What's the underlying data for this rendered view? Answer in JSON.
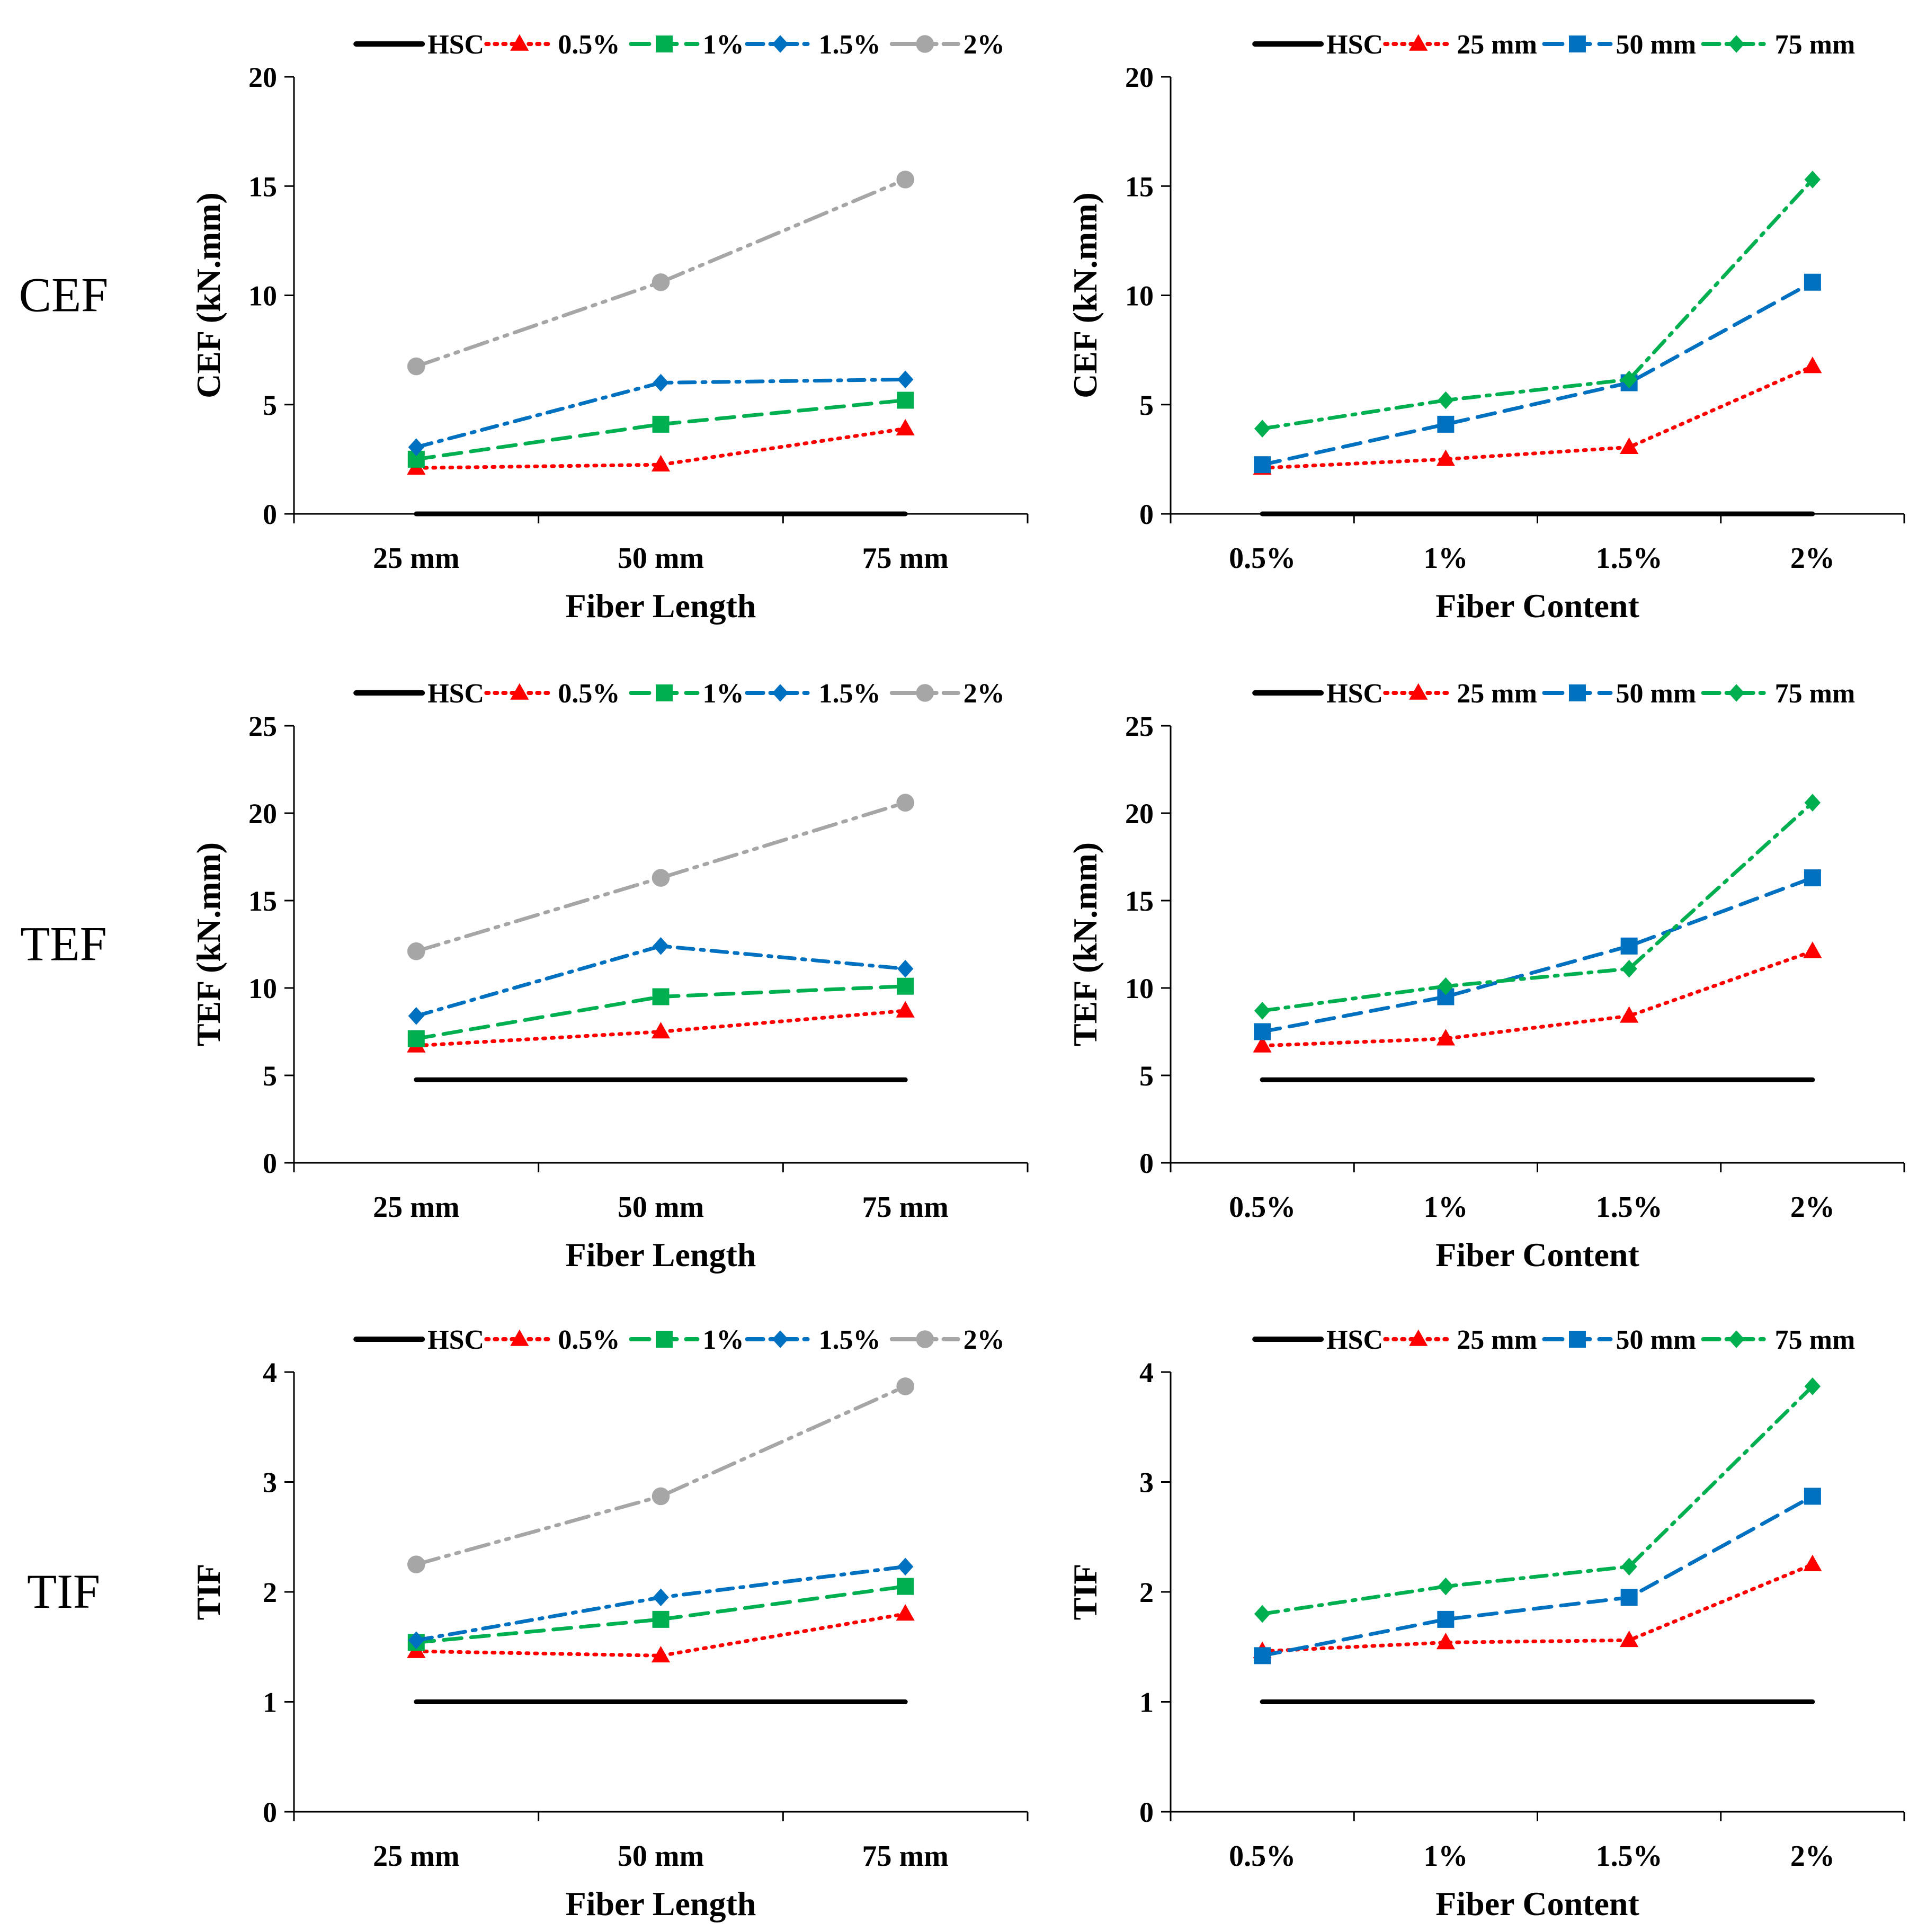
{
  "row_labels": [
    "CEF",
    "TEF",
    "TIF"
  ],
  "series_styles": {
    "HSC": {
      "color": "#000000",
      "dash": "none",
      "marker": "none",
      "width": 9
    },
    "0.5%": {
      "color": "#FF0000",
      "dash": "4 12",
      "marker": "triangle",
      "width": 7
    },
    "1%": {
      "color": "#00B050",
      "dash": "34 18",
      "marker": "square",
      "width": 7
    },
    "1.5%": {
      "color": "#0070C0",
      "dash": "30 14 6 14",
      "marker": "diamond",
      "width": 7
    },
    "2%": {
      "color": "#A6A6A6",
      "dash": "44 14 6 14 6 14",
      "marker": "circle",
      "width": 7
    },
    "25 mm": {
      "color": "#FF0000",
      "dash": "4 12",
      "marker": "triangle",
      "width": 7
    },
    "50 mm": {
      "color": "#0070C0",
      "dash": "34 18",
      "marker": "square",
      "width": 7
    },
    "75 mm": {
      "color": "#00B050",
      "dash": "30 14 6 14",
      "marker": "diamond",
      "width": 7
    }
  },
  "chart_data": [
    {
      "type": "line",
      "ylabel": "CEF (kN.mm)",
      "xlabel": "Fiber Length",
      "categories": [
        "25 mm",
        "50 mm",
        "75 mm"
      ],
      "ylim": [
        0,
        20
      ],
      "yticks": [
        0,
        5,
        10,
        15,
        20
      ],
      "series": [
        {
          "name": "HSC",
          "values": [
            0,
            0,
            0
          ]
        },
        {
          "name": "0.5%",
          "values": [
            2.1,
            2.25,
            3.9
          ]
        },
        {
          "name": "1%",
          "values": [
            2.5,
            4.1,
            5.2
          ]
        },
        {
          "name": "1.5%",
          "values": [
            3.05,
            6.0,
            6.15
          ]
        },
        {
          "name": "2%",
          "values": [
            6.75,
            10.6,
            15.3
          ]
        }
      ]
    },
    {
      "type": "line",
      "ylabel": "CEF (kN.mm)",
      "xlabel": "Fiber Content",
      "categories": [
        "0.5%",
        "1%",
        "1.5%",
        "2%"
      ],
      "ylim": [
        0,
        20
      ],
      "yticks": [
        0,
        5,
        10,
        15,
        20
      ],
      "series": [
        {
          "name": "HSC",
          "values": [
            0,
            0,
            0,
            0
          ]
        },
        {
          "name": "25 mm",
          "values": [
            2.1,
            2.5,
            3.05,
            6.75
          ]
        },
        {
          "name": "50 mm",
          "values": [
            2.25,
            4.1,
            6.0,
            10.6
          ]
        },
        {
          "name": "75 mm",
          "values": [
            3.9,
            5.2,
            6.15,
            15.3
          ]
        }
      ]
    },
    {
      "type": "line",
      "ylabel": "TEF (kN.mm)",
      "xlabel": "Fiber Length",
      "categories": [
        "25 mm",
        "50 mm",
        "75 mm"
      ],
      "ylim": [
        0,
        25
      ],
      "yticks": [
        0,
        5,
        10,
        15,
        20,
        25
      ],
      "series": [
        {
          "name": "HSC",
          "values": [
            4.75,
            4.75,
            4.75
          ]
        },
        {
          "name": "0.5%",
          "values": [
            6.7,
            7.5,
            8.7
          ]
        },
        {
          "name": "1%",
          "values": [
            7.1,
            9.5,
            10.1
          ]
        },
        {
          "name": "1.5%",
          "values": [
            8.4,
            12.4,
            11.1
          ]
        },
        {
          "name": "2%",
          "values": [
            12.1,
            16.3,
            20.6
          ]
        }
      ]
    },
    {
      "type": "line",
      "ylabel": "TEF (kN.mm)",
      "xlabel": "Fiber Content",
      "categories": [
        "0.5%",
        "1%",
        "1.5%",
        "2%"
      ],
      "ylim": [
        0,
        25
      ],
      "yticks": [
        0,
        5,
        10,
        15,
        20,
        25
      ],
      "series": [
        {
          "name": "HSC",
          "values": [
            4.75,
            4.75,
            4.75,
            4.75
          ]
        },
        {
          "name": "25 mm",
          "values": [
            6.7,
            7.1,
            8.4,
            12.1
          ]
        },
        {
          "name": "50 mm",
          "values": [
            7.5,
            9.5,
            12.4,
            16.3
          ]
        },
        {
          "name": "75 mm",
          "values": [
            8.7,
            10.1,
            11.1,
            20.6
          ]
        }
      ]
    },
    {
      "type": "line",
      "ylabel": "TIF",
      "xlabel": "Fiber Length",
      "categories": [
        "25 mm",
        "50 mm",
        "75 mm"
      ],
      "ylim": [
        0,
        4
      ],
      "yticks": [
        0,
        1,
        2,
        3,
        4
      ],
      "series": [
        {
          "name": "HSC",
          "values": [
            1,
            1,
            1
          ]
        },
        {
          "name": "0.5%",
          "values": [
            1.46,
            1.42,
            1.8
          ]
        },
        {
          "name": "1%",
          "values": [
            1.54,
            1.75,
            2.05
          ]
        },
        {
          "name": "1.5%",
          "values": [
            1.56,
            1.95,
            2.23
          ]
        },
        {
          "name": "2%",
          "values": [
            2.25,
            2.87,
            3.87
          ]
        }
      ]
    },
    {
      "type": "line",
      "ylabel": "TIF",
      "xlabel": "Fiber Content",
      "categories": [
        "0.5%",
        "1%",
        "1.5%",
        "2%"
      ],
      "ylim": [
        0,
        4
      ],
      "yticks": [
        0,
        1,
        2,
        3,
        4
      ],
      "series": [
        {
          "name": "HSC",
          "values": [
            1,
            1,
            1,
            1
          ]
        },
        {
          "name": "25 mm",
          "values": [
            1.46,
            1.54,
            1.56,
            2.25
          ]
        },
        {
          "name": "50 mm",
          "values": [
            1.42,
            1.75,
            1.95,
            2.87
          ]
        },
        {
          "name": "75 mm",
          "values": [
            1.8,
            2.05,
            2.23,
            3.87
          ]
        }
      ]
    }
  ]
}
